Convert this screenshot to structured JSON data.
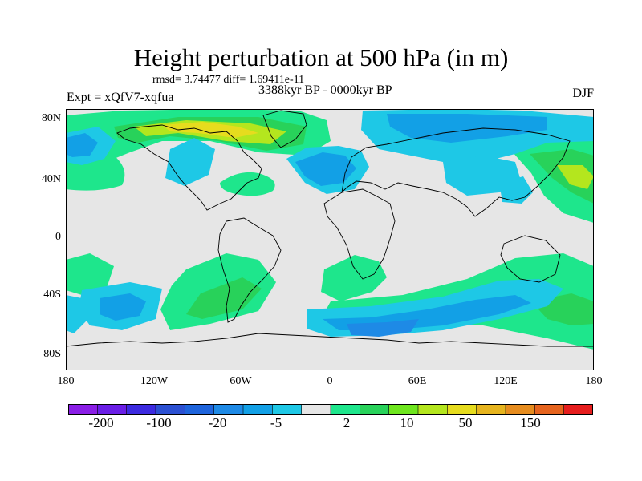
{
  "title": "Height perturbation at 500 hPa (in m)",
  "stats": "rmsd= 3.74477 diff= 1.69411e-11",
  "experiment": "Expt = xQfV7-xqfua",
  "period": "3388kyr BP - 0000kyr BP",
  "season": "DJF",
  "y_axis": {
    "ticks": [
      "80N",
      "40N",
      "0",
      "40S",
      "80S"
    ]
  },
  "x_axis": {
    "ticks": [
      "180",
      "120W",
      "60W",
      "0",
      "60E",
      "120E",
      "180"
    ]
  },
  "colorbar": {
    "colors": [
      "#8a1ee6",
      "#6a1ee6",
      "#3c2ae0",
      "#2b50d2",
      "#1e64dc",
      "#1e8ae6",
      "#12a0e6",
      "#1ec8e6",
      "#e6e6e6",
      "#1ee68c",
      "#28d25a",
      "#6ee61e",
      "#b4e61e",
      "#e6dc1e",
      "#e6b41e",
      "#e68c1e",
      "#e6641e",
      "#e61e1e"
    ],
    "labels": [
      "-200",
      "-100",
      "-20",
      "-5",
      "2",
      "10",
      "50",
      "150"
    ]
  },
  "palette": {
    "neutral": "#e6e6e6",
    "green_light": "#1ee68c",
    "green": "#28d25a",
    "yellowgreen": "#b4e61e",
    "olive": "#e6dc1e",
    "cyan": "#1ec8e6",
    "blue_light": "#12a0e6",
    "blue": "#1e8ae6",
    "coast": "#000000"
  }
}
